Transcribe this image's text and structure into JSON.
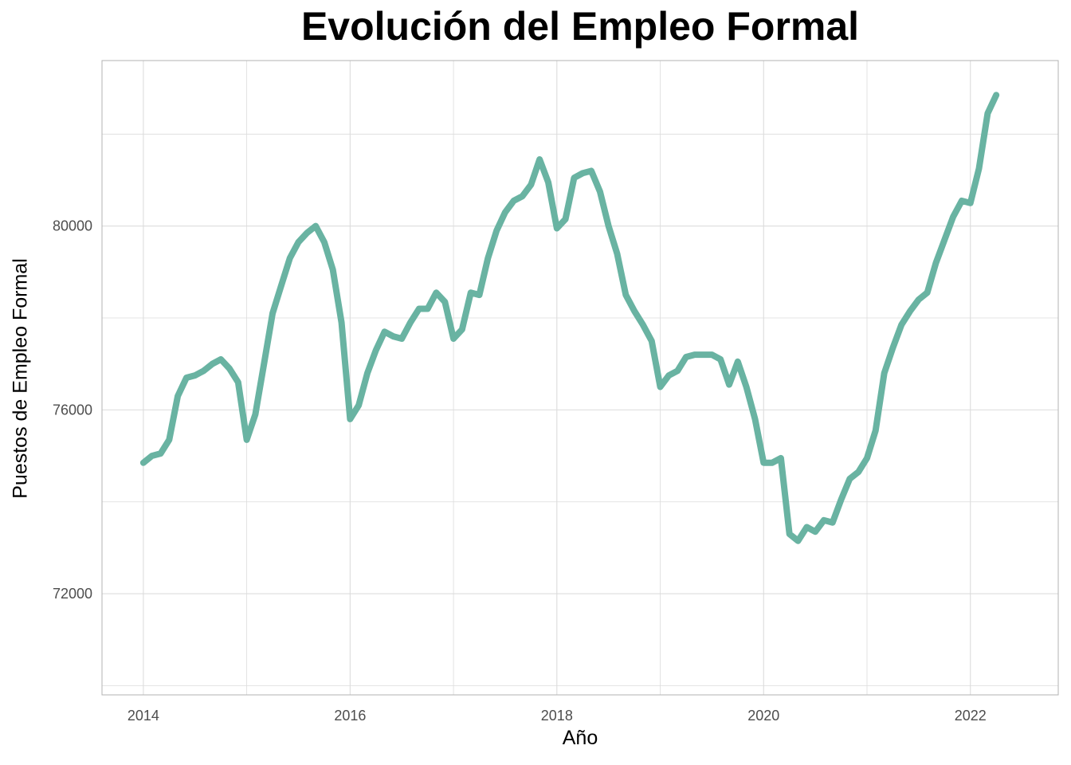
{
  "chart_data": {
    "type": "line",
    "title": "Evolución del Empleo Formal",
    "xlabel": "Año",
    "ylabel": "Puestos de Empleo Formal",
    "xlim": [
      2013.6,
      2022.85
    ],
    "ylim": [
      69800,
      83600
    ],
    "x_ticks": [
      2014,
      2016,
      2018,
      2020,
      2022
    ],
    "x_tick_labels": [
      "2014",
      "2016",
      "2018",
      "2020",
      "2022"
    ],
    "y_ticks": [
      72000,
      76000,
      80000
    ],
    "y_tick_labels": [
      "72000",
      "76000",
      "80000"
    ],
    "grid": true,
    "colors": {
      "line": "#69b3a2",
      "grid": "#dcdcdc",
      "axis": "#b3b3b3",
      "tick_text": "#4d4d4d"
    },
    "series": [
      {
        "x": [
          2014.0,
          2014.083,
          2014.167,
          2014.25,
          2014.333,
          2014.417,
          2014.5,
          2014.583,
          2014.667,
          2014.75,
          2014.833,
          2014.917,
          2015.0,
          2015.083,
          2015.167,
          2015.25,
          2015.333,
          2015.417,
          2015.5,
          2015.583,
          2015.667,
          2015.75,
          2015.833,
          2015.917,
          2016.0,
          2016.083,
          2016.167,
          2016.25,
          2016.333,
          2016.417,
          2016.5,
          2016.583,
          2016.667,
          2016.75,
          2016.833,
          2016.917,
          2017.0,
          2017.083,
          2017.167,
          2017.25,
          2017.333,
          2017.417,
          2017.5,
          2017.583,
          2017.667,
          2017.75,
          2017.833,
          2017.917,
          2018.0,
          2018.083,
          2018.167,
          2018.25,
          2018.333,
          2018.417,
          2018.5,
          2018.583,
          2018.667,
          2018.75,
          2018.833,
          2018.917,
          2019.0,
          2019.083,
          2019.167,
          2019.25,
          2019.333,
          2019.417,
          2019.5,
          2019.583,
          2019.667,
          2019.75,
          2019.833,
          2019.917,
          2020.0,
          2020.083,
          2020.167,
          2020.25,
          2020.333,
          2020.417,
          2020.5,
          2020.583,
          2020.667,
          2020.75,
          2020.833,
          2020.917,
          2021.0,
          2021.083,
          2021.167,
          2021.25,
          2021.333,
          2021.417,
          2021.5,
          2021.583,
          2021.667,
          2021.75,
          2021.833,
          2021.917,
          2022.0,
          2022.083,
          2022.167,
          2022.25
        ],
        "values": [
          74850,
          75000,
          75050,
          75350,
          76300,
          76700,
          76750,
          76850,
          77000,
          77100,
          76900,
          76600,
          75350,
          75900,
          77000,
          78100,
          78700,
          79300,
          79650,
          79850,
          80000,
          79650,
          79050,
          77900,
          75800,
          76100,
          76800,
          77300,
          77700,
          77600,
          77550,
          77900,
          78200,
          78200,
          78550,
          78350,
          77550,
          77750,
          78550,
          78500,
          79300,
          79900,
          80300,
          80550,
          80650,
          80900,
          81450,
          80950,
          79950,
          80150,
          81050,
          81150,
          81200,
          80750,
          80000,
          79400,
          78500,
          78150,
          77850,
          77500,
          76500,
          76750,
          76850,
          77150,
          77200,
          77200,
          77200,
          77100,
          76550,
          77050,
          76500,
          75800,
          74850,
          74850,
          74950,
          73300,
          73150,
          73450,
          73350,
          73600,
          73550,
          74050,
          74500,
          74650,
          74950,
          75550,
          76800,
          77350,
          77850,
          78150,
          78400,
          78550,
          79200,
          79700,
          80200,
          80550,
          80500,
          81250,
          82450,
          82850
        ]
      }
    ]
  }
}
